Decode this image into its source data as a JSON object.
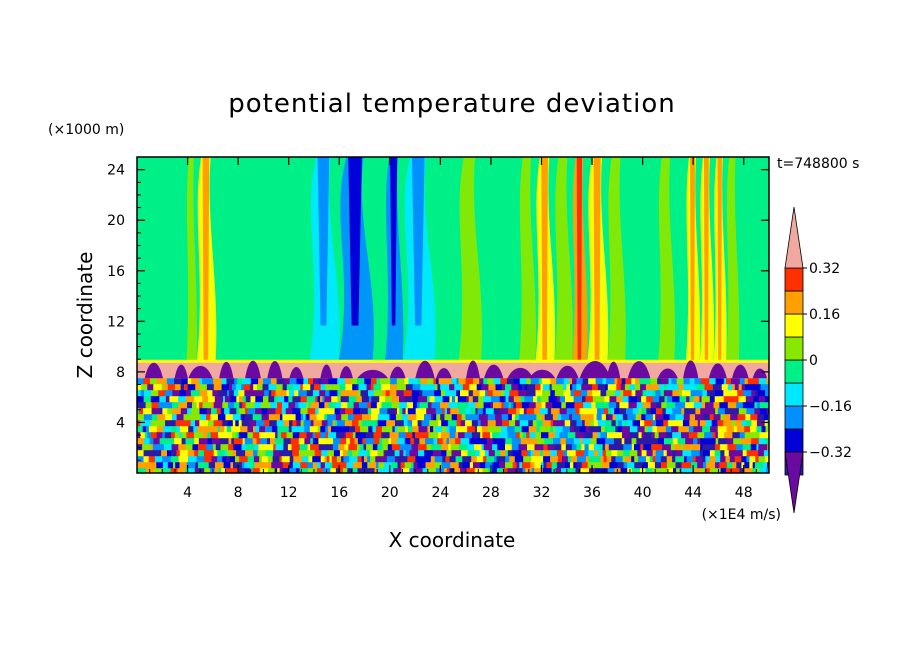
{
  "chart_data": {
    "type": "heatmap",
    "title": "potential temperature deviation",
    "xlabel": "X coordinate",
    "ylabel": "Z coordinate",
    "x_unit": "(×1E4 m/s)",
    "y_unit": "(×1000 m)",
    "time_label": "t=748800 s",
    "xlim": [
      0,
      50
    ],
    "ylim": [
      0,
      25
    ],
    "x_ticks": [
      4,
      8,
      12,
      16,
      20,
      24,
      28,
      32,
      36,
      40,
      44,
      48
    ],
    "y_ticks": [
      4,
      8,
      12,
      16,
      20,
      24
    ],
    "colorbar": {
      "levels": [
        -0.4,
        -0.32,
        -0.24,
        -0.16,
        -0.08,
        0,
        0.08,
        0.16,
        0.24,
        0.32,
        0.4
      ],
      "tick_labels": [
        "0.32",
        "0.16",
        "0",
        "−0.16",
        "−0.32"
      ],
      "tick_values": [
        0.32,
        0.16,
        0,
        -0.16,
        -0.32
      ],
      "colors": [
        "#6a0aa0",
        "#2a1aa8",
        "#0000d8",
        "#0090ff",
        "#00e8ff",
        "#00f088",
        "#88e800",
        "#ffff00",
        "#ffa000",
        "#ff3000",
        "#f0a8a0"
      ],
      "extend": "both"
    },
    "stratosphere_columns": [
      {
        "x": 0.0,
        "level": 5
      },
      {
        "x": 2.3,
        "level": 5
      },
      {
        "x": 3.9,
        "level": 6
      },
      {
        "x": 4.7,
        "level": 7
      },
      {
        "x": 6.2,
        "level": 5
      },
      {
        "x": 8.0,
        "level": 5
      },
      {
        "x": 10.5,
        "level": 5
      },
      {
        "x": 13.6,
        "level": 4
      },
      {
        "x": 15.9,
        "level": 3
      },
      {
        "x": 18.6,
        "level": 5
      },
      {
        "x": 19.6,
        "level": 3
      },
      {
        "x": 21.0,
        "level": 4
      },
      {
        "x": 23.5,
        "level": 5
      },
      {
        "x": 25.4,
        "level": 6
      },
      {
        "x": 27.2,
        "level": 5
      },
      {
        "x": 28.8,
        "level": 5
      },
      {
        "x": 30.2,
        "level": 6
      },
      {
        "x": 31.5,
        "level": 7
      },
      {
        "x": 33.0,
        "level": 6
      },
      {
        "x": 34.4,
        "level": 8
      },
      {
        "x": 35.6,
        "level": 7
      },
      {
        "x": 37.2,
        "level": 6
      },
      {
        "x": 38.6,
        "level": 5
      },
      {
        "x": 39.8,
        "level": 5
      },
      {
        "x": 41.2,
        "level": 6
      },
      {
        "x": 42.5,
        "level": 5
      },
      {
        "x": 43.4,
        "level": 7
      },
      {
        "x": 44.5,
        "level": 7
      },
      {
        "x": 45.6,
        "level": 7
      },
      {
        "x": 46.6,
        "level": 6
      },
      {
        "x": 47.6,
        "level": 5
      },
      {
        "x": 48.8,
        "level": 5
      },
      {
        "x": 50.0,
        "level": 5
      }
    ],
    "tropopause_z": 8.5,
    "inversion_layer_z": [
      7.5,
      8.8
    ]
  }
}
